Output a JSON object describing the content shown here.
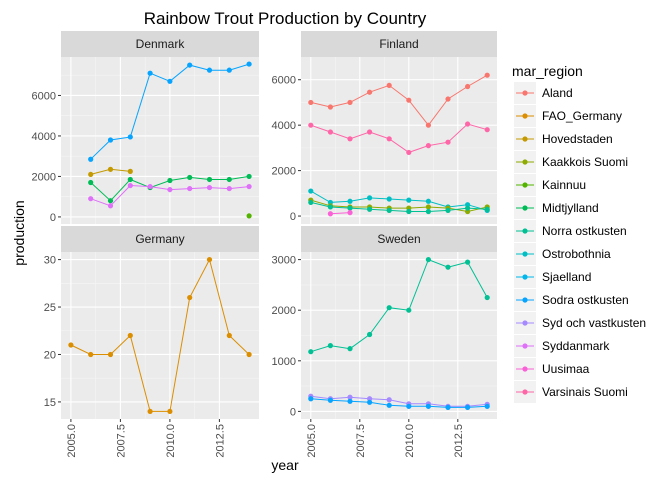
{
  "chart_data": {
    "type": "line",
    "title": "Rainbow Trout Production by Country",
    "xlabel": "year",
    "ylabel": "production",
    "legend_title": "mar_region",
    "legend_position": "right",
    "facet_layout": "2x2",
    "grid": true,
    "x_ticks": [
      2005.0,
      2007.5,
      2010.0,
      2012.5
    ],
    "x_tick_labels": [
      "2005.0",
      "2007.5",
      "2010.0",
      "2012.5"
    ],
    "xlim": [
      2004.5,
      2014.5
    ],
    "regions": [
      {
        "name": "Aland",
        "color": "#F8766D"
      },
      {
        "name": "FAO_Germany",
        "color": "#DB8E00"
      },
      {
        "name": "Hovedstaden",
        "color": "#AEA200"
      },
      {
        "name": "Kaakkois Suomi",
        "color": "#64B200"
      },
      {
        "name": "Kainnuu",
        "color": "#00BD5C"
      },
      {
        "name": "Midtjylland",
        "color": "#00C1A7"
      },
      {
        "name": "Norra ostkusten",
        "color": "#00BADE"
      },
      {
        "name": "Ostrobothnia",
        "color": "#00A6FF"
      },
      {
        "name": "Sjaelland",
        "color": "#B385FF"
      },
      {
        "name": "Sodra ostkusten",
        "color": "#EF67EB"
      },
      {
        "name": "Syd och vastkusten",
        "color": "#FF63B6"
      },
      {
        "name": "Syddanmark",
        "color": "#FF6C91"
      },
      {
        "name": "Uusimaa",
        "color": "#C77CFF"
      },
      {
        "name": "Varsinais Suomi",
        "color": "#FF61C3"
      }
    ],
    "legend_labels": [
      "Aland",
      "FAO_Germany",
      "Hovedstaden",
      "Kaakkois Suomi",
      "Kainnuu",
      "Midtjylland",
      "Norra ostkusten",
      "Ostrobothnia",
      "Sjaelland",
      "Sodra ostkusten",
      "Syd och vastkusten",
      "Syddanmark",
      "Uusimaa",
      "Varsinais Suomi"
    ],
    "legend_colors": [
      "#F8766D",
      "#DB8E00",
      "#C49A00",
      "#8FAA00",
      "#53B400",
      "#00BC56",
      "#00C094",
      "#00BFC4",
      "#00B6EB",
      "#06A4FF",
      "#A58AFF",
      "#DF70F8",
      "#FB61D7",
      "#FF66A8"
    ],
    "panels": [
      {
        "name": "Denmark",
        "ylim": [
          -350,
          7900
        ],
        "y_ticks": [
          0,
          2000,
          4000,
          6000
        ],
        "y_tick_labels": [
          "0",
          "2000",
          "4000",
          "6000"
        ],
        "series": [
          {
            "name": "Sjaelland",
            "color": "#06A4FF",
            "x": [
              2006,
              2007,
              2008,
              2009,
              2010,
              2011,
              2012,
              2013,
              2014
            ],
            "y": [
              2850,
              3800,
              3950,
              7100,
              6700,
              7500,
              7250,
              7250,
              7550
            ]
          },
          {
            "name": "Hovedstaden",
            "color": "#C49A00",
            "x": [
              2006,
              2007,
              2008
            ],
            "y": [
              2100,
              2350,
              2250
            ]
          },
          {
            "name": "Midtjylland",
            "color": "#00BC56",
            "x": [
              2006,
              2007,
              2008,
              2009,
              2010,
              2011,
              2012,
              2013,
              2014
            ],
            "y": [
              1700,
              800,
              1850,
              1450,
              1800,
              1950,
              1850,
              1850,
              2000
            ]
          },
          {
            "name": "Kainnuu",
            "color": "#53B400",
            "x": [
              2014
            ],
            "y": [
              50
            ]
          },
          {
            "name": "Syddanmark",
            "color": "#DF70F8",
            "x": [
              2006,
              2007,
              2008,
              2009,
              2010,
              2011,
              2012,
              2013,
              2014
            ],
            "y": [
              900,
              550,
              1550,
              1500,
              1350,
              1400,
              1450,
              1400,
              1500
            ]
          }
        ]
      },
      {
        "name": "Finland",
        "ylim": [
          -350,
          7000
        ],
        "y_ticks": [
          0,
          2000,
          4000,
          6000
        ],
        "y_tick_labels": [
          "0",
          "2000",
          "4000",
          "6000"
        ],
        "series": [
          {
            "name": "Aland",
            "color": "#F8766D",
            "x": [
              2005,
              2006,
              2007,
              2008,
              2009,
              2010,
              2011,
              2012,
              2013,
              2014
            ],
            "y": [
              5000,
              4800,
              5000,
              5450,
              5750,
              5100,
              4000,
              5150,
              5700,
              6200
            ]
          },
          {
            "name": "Varsinais Suomi",
            "color": "#FF66A8",
            "x": [
              2005,
              2006,
              2007,
              2008,
              2009,
              2010,
              2011,
              2012,
              2013,
              2014
            ],
            "y": [
              4000,
              3700,
              3400,
              3700,
              3400,
              2800,
              3100,
              3250,
              4050,
              3800
            ]
          },
          {
            "name": "Ostrobothnia",
            "color": "#00BFC4",
            "x": [
              2005,
              2006,
              2007,
              2008,
              2009,
              2010,
              2011,
              2012,
              2013,
              2014
            ],
            "y": [
              1100,
              600,
              650,
              800,
              750,
              700,
              650,
              400,
              500,
              250
            ]
          },
          {
            "name": "Kaakkois Suomi",
            "color": "#8FAA00",
            "x": [
              2005,
              2006,
              2007,
              2008,
              2009,
              2010,
              2011,
              2012,
              2013,
              2014
            ],
            "y": [
              700,
              450,
              400,
              400,
              350,
              350,
              400,
              350,
              200,
              400
            ]
          },
          {
            "name": "Norra ostkusten",
            "color": "#00C094",
            "x": [
              2005,
              2006,
              2007,
              2008,
              2009,
              2010,
              2011,
              2012,
              2013,
              2014
            ],
            "y": [
              600,
              400,
              350,
              300,
              250,
              200,
              200,
              250,
              350,
              300
            ]
          },
          {
            "name": "Uusimaa",
            "color": "#FB61D7",
            "x": [
              2006,
              2007
            ],
            "y": [
              100,
              150
            ]
          }
        ]
      },
      {
        "name": "Germany",
        "ylim": [
          13.2,
          30.8
        ],
        "y_ticks": [
          15,
          20,
          25,
          30
        ],
        "y_tick_labels": [
          "15",
          "20",
          "25",
          "30"
        ],
        "series": [
          {
            "name": "FAO_Germany",
            "color": "#DB8E00",
            "x": [
              2005,
              2006,
              2007,
              2008,
              2009,
              2010,
              2011,
              2012,
              2013,
              2014
            ],
            "y": [
              21,
              20,
              20,
              22,
              14,
              14,
              26,
              30,
              22,
              20
            ]
          }
        ]
      },
      {
        "name": "Sweden",
        "ylim": [
          -150,
          3150
        ],
        "y_ticks": [
          0,
          1000,
          2000,
          3000
        ],
        "y_tick_labels": [
          "0",
          "1000",
          "2000",
          "3000"
        ],
        "series": [
          {
            "name": "Norra ostkusten",
            "color": "#00C094",
            "x": [
              2005,
              2006,
              2007,
              2008,
              2009,
              2010,
              2011,
              2012,
              2013,
              2014
            ],
            "y": [
              1180,
              1300,
              1240,
              1520,
              2050,
              2000,
              3000,
              2850,
              2950,
              2250
            ]
          },
          {
            "name": "Syd och vastkusten",
            "color": "#A58AFF",
            "x": [
              2005,
              2006,
              2007,
              2008,
              2009,
              2010,
              2011,
              2012,
              2013,
              2014
            ],
            "y": [
              300,
              250,
              280,
              250,
              230,
              150,
              150,
              100,
              100,
              140
            ]
          },
          {
            "name": "Sodra ostkusten",
            "color": "#06A4FF",
            "x": [
              2005,
              2006,
              2007,
              2008,
              2009,
              2010,
              2011,
              2012,
              2013,
              2014
            ],
            "y": [
              250,
              220,
              200,
              180,
              120,
              100,
              100,
              80,
              80,
              100
            ]
          }
        ]
      }
    ]
  }
}
